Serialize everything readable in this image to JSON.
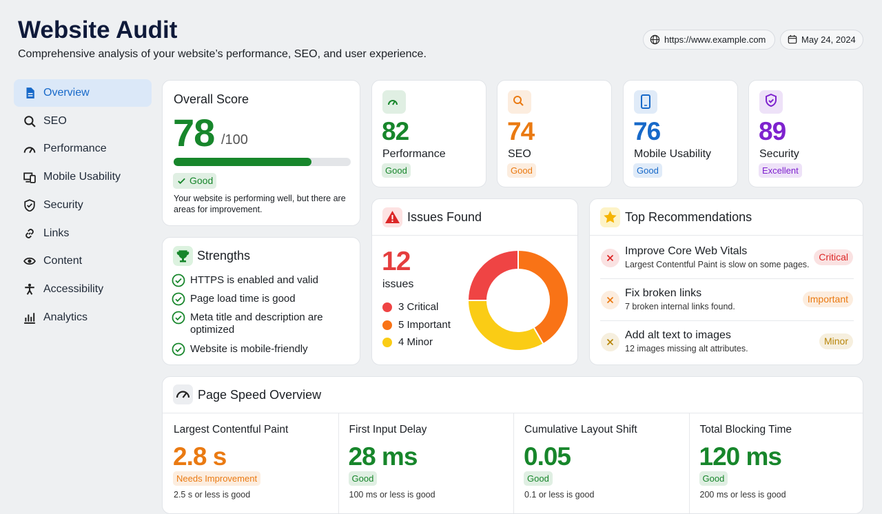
{
  "header": {
    "title": "Website Audit",
    "subtitle": "Comprehensive analysis of your website’s performance, SEO, and user experience.",
    "url": "https://www.example.com",
    "date": "May 24, 2024"
  },
  "nav": [
    "Overview",
    "SEO",
    "Performance",
    "Mobile Usability",
    "Security",
    "Links",
    "Content",
    "Accessibility",
    "Analytics"
  ],
  "overall": {
    "title": "Overall Score",
    "score": 78,
    "max": {
      "value": 100,
      "label": "/100"
    },
    "badge": "Good",
    "color": "#17862b",
    "note": "Your website is performing well, but there are areas for improvement."
  },
  "score_cards": [
    {
      "value": 82,
      "label": "Performance",
      "badge": "Good",
      "color": "#17862b"
    },
    {
      "value": 74,
      "label": "SEO",
      "badge": "Good",
      "color": "#ea7a12"
    },
    {
      "value": 76,
      "label": "Mobile Usability",
      "badge": "Good",
      "color": "#1769c9"
    },
    {
      "value": 89,
      "label": "Security",
      "badge": "Excellent",
      "color": "#7e22ce"
    }
  ],
  "strengths": {
    "title": "Strengths",
    "items": [
      "HTTPS is enabled and valid",
      "Page load time is good",
      "Meta title and description are optimized",
      "Website is mobile-friendly"
    ]
  },
  "issues": {
    "title": "Issues Found",
    "total": 12,
    "unit": "issues",
    "segments": [
      {
        "count": 3,
        "label": "Critical",
        "color": "#ef4444"
      },
      {
        "count": 5,
        "label": "Important",
        "color": "#f97316"
      },
      {
        "count": 4,
        "label": "Minor",
        "color": "#facc15"
      }
    ]
  },
  "recommendations": {
    "title": "Top Recommendations",
    "items": [
      {
        "title": "Improve Core Web Vitals",
        "detail": "Largest Contentful Paint is slow on some pages.",
        "badge": "Critical",
        "color": "#dc2626"
      },
      {
        "title": "Fix broken links",
        "detail": "7 broken internal links found.",
        "badge": "Important",
        "color": "#ea7a12"
      },
      {
        "title": "Add alt text to images",
        "detail": "12 images missing alt attributes.",
        "badge": "Minor",
        "color": "#b8860b"
      }
    ]
  },
  "page_speed": {
    "title": "Page Speed Overview",
    "metrics": [
      {
        "name": "Largest Contentful Paint",
        "value": "2.8 s",
        "badge": "Needs Improvement",
        "note": "2.5 s or less is good",
        "color": "#ea7a12"
      },
      {
        "name": "First Input Delay",
        "value": "28 ms",
        "badge": "Good",
        "note": "100 ms or less is good",
        "color": "#17862b"
      },
      {
        "name": "Cumulative Layout Shift",
        "value": "0.05",
        "badge": "Good",
        "note": "0.1 or less is good",
        "color": "#17862b"
      },
      {
        "name": "Total Blocking Time",
        "value": "120 ms",
        "badge": "Good",
        "note": "200 ms or less is good",
        "color": "#17862b"
      }
    ]
  }
}
